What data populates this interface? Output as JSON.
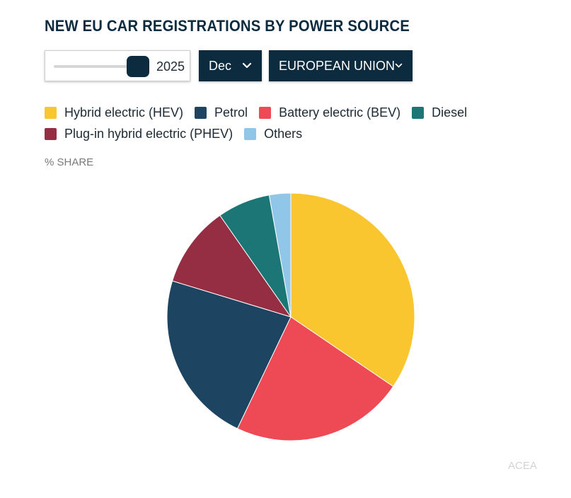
{
  "title": "NEW EU CAR REGISTRATIONS BY POWER SOURCE",
  "controls": {
    "year": "2025",
    "month": "Dec",
    "region": "EUROPEAN UNION"
  },
  "unit_label": "% SHARE",
  "source": "ACEA",
  "colors": {
    "hev": "#f9c62f",
    "petrol": "#1d4461",
    "bev": "#ee4a55",
    "diesel": "#1c7676",
    "phev": "#952d43",
    "others": "#90c6e8",
    "dark": "#0d2b3e"
  },
  "chart_data": {
    "type": "pie",
    "slices": [
      {
        "label": "Hybrid electric (HEV)",
        "value": 34.5,
        "color": "#f9c62f"
      },
      {
        "label": "Battery electric (BEV)",
        "value": 22.6,
        "color": "#ee4a55"
      },
      {
        "label": "Petrol",
        "value": 22.6,
        "color": "#1d4461"
      },
      {
        "label": "Plug-in hybrid electric (PHEV)",
        "value": 10.6,
        "color": "#952d43"
      },
      {
        "label": "Diesel",
        "value": 6.9,
        "color": "#1c7676"
      },
      {
        "label": "Others",
        "value": 2.8,
        "color": "#90c6e8"
      }
    ],
    "legend": [
      [
        "Hybrid electric (HEV)",
        "Petrol",
        "Battery electric (BEV)",
        "Diesel"
      ],
      [
        "Plug-in hybrid electric (PHEV)",
        "Others"
      ]
    ],
    "legend_placement": "top"
  }
}
